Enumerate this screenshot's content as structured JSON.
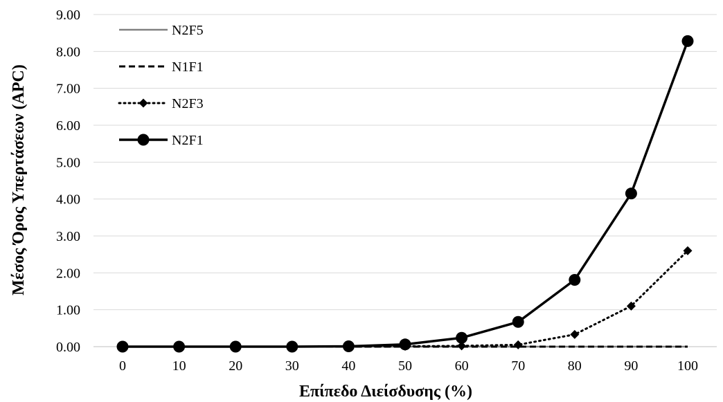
{
  "chart_data": {
    "type": "line",
    "title": "",
    "xlabel": "Επίπεδο Διείσδυσης (%)",
    "ylabel": "Μέσος Όρος Υπερτάσεων (APC)",
    "x": [
      0,
      10,
      20,
      30,
      40,
      50,
      60,
      70,
      80,
      90,
      100
    ],
    "x_tick_labels": [
      "0",
      "10",
      "20",
      "30",
      "40",
      "50",
      "60",
      "70",
      "80",
      "90",
      "100"
    ],
    "y_tick_labels": [
      "0.00",
      "1.00",
      "2.00",
      "3.00",
      "4.00",
      "5.00",
      "6.00",
      "7.00",
      "8.00",
      "9.00"
    ],
    "ylim": [
      0,
      9
    ],
    "grid": "horizontal",
    "legend_position": "top-left",
    "series": [
      {
        "name": "N2F5",
        "style": "solid-thin",
        "color": "#808080",
        "marker": "none",
        "values": [
          0,
          0,
          0,
          0,
          0,
          0,
          0,
          0,
          0,
          0,
          0
        ]
      },
      {
        "name": "N1F1",
        "style": "dashed",
        "color": "#000000",
        "marker": "none",
        "values": [
          0,
          0,
          0,
          0,
          0,
          0,
          0,
          0,
          0,
          0,
          0
        ]
      },
      {
        "name": "N2F3",
        "style": "dotted",
        "color": "#000000",
        "marker": "diamond",
        "values": [
          0,
          0,
          0,
          0,
          0,
          0.01,
          0.02,
          0.05,
          0.33,
          1.1,
          2.6
        ]
      },
      {
        "name": "N2F1",
        "style": "solid",
        "color": "#000000",
        "marker": "circle",
        "values": [
          0,
          0,
          0,
          0,
          0.01,
          0.06,
          0.24,
          0.67,
          1.81,
          4.15,
          8.28
        ]
      }
    ]
  }
}
